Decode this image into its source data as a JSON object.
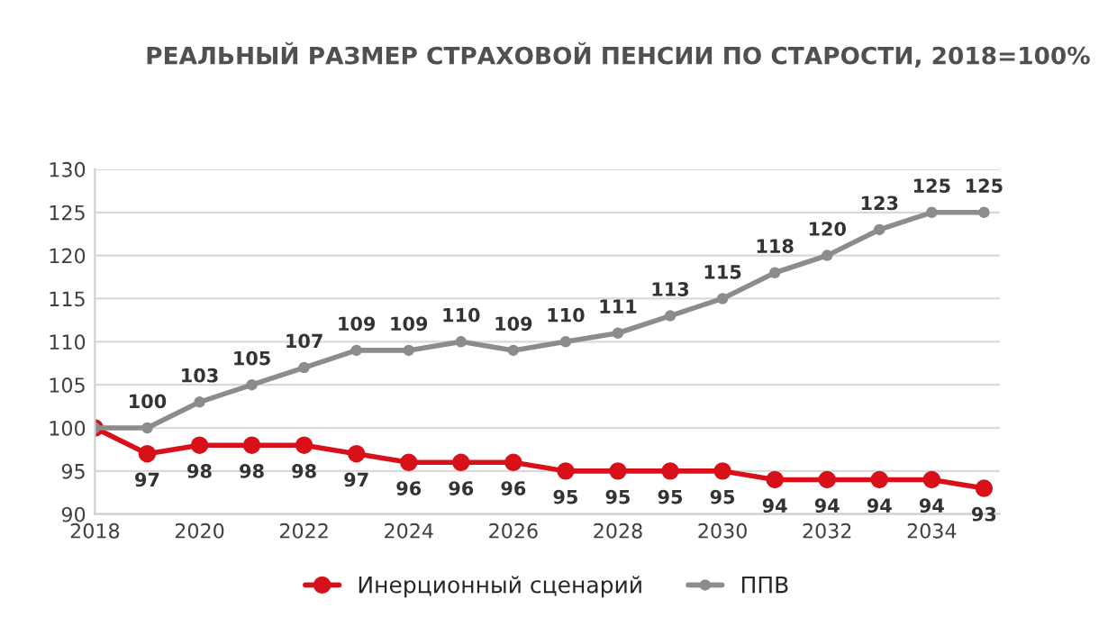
{
  "chart_data": {
    "type": "line",
    "title": "РЕАЛЬНЫЙ РАЗМЕР СТРАХОВОЙ ПЕНСИИ ПО СТАРОСТИ, 2018=100%",
    "x": [
      2018,
      2019,
      2020,
      2021,
      2022,
      2023,
      2024,
      2025,
      2026,
      2027,
      2028,
      2029,
      2030,
      2031,
      2032,
      2033,
      2034,
      2035
    ],
    "series": [
      {
        "name": "Инерционный сценарий",
        "color": "#d7101a",
        "values": [
          100,
          97,
          98,
          98,
          98,
          97,
          96,
          96,
          96,
          95,
          95,
          95,
          95,
          94,
          94,
          94,
          94,
          93
        ],
        "value_labels": [
          null,
          "97",
          "98",
          "98",
          "98",
          "97",
          "96",
          "96",
          "96",
          "95",
          "95",
          "95",
          "95",
          "94",
          "94",
          "94",
          "94",
          "93"
        ]
      },
      {
        "name": "ППВ",
        "color": "#8c8c8c",
        "values": [
          100,
          100,
          103,
          105,
          107,
          109,
          109,
          110,
          109,
          110,
          111,
          113,
          115,
          118,
          120,
          123,
          125,
          125
        ],
        "value_labels": [
          null,
          "100",
          "103",
          "105",
          "107",
          "109",
          "109",
          "110",
          "109",
          "110",
          "111",
          "113",
          "115",
          "118",
          "120",
          "123",
          "125",
          "125"
        ]
      }
    ],
    "xlim": [
      2018,
      2035.3
    ],
    "xticks": [
      2018,
      2020,
      2022,
      2024,
      2026,
      2028,
      2030,
      2032,
      2034
    ],
    "ylim": [
      90,
      130
    ],
    "yticks": [
      90,
      95,
      100,
      105,
      110,
      115,
      120,
      125,
      130
    ],
    "grid": "y",
    "legend": "bottom",
    "marker": "circle",
    "line_style": "solid"
  }
}
